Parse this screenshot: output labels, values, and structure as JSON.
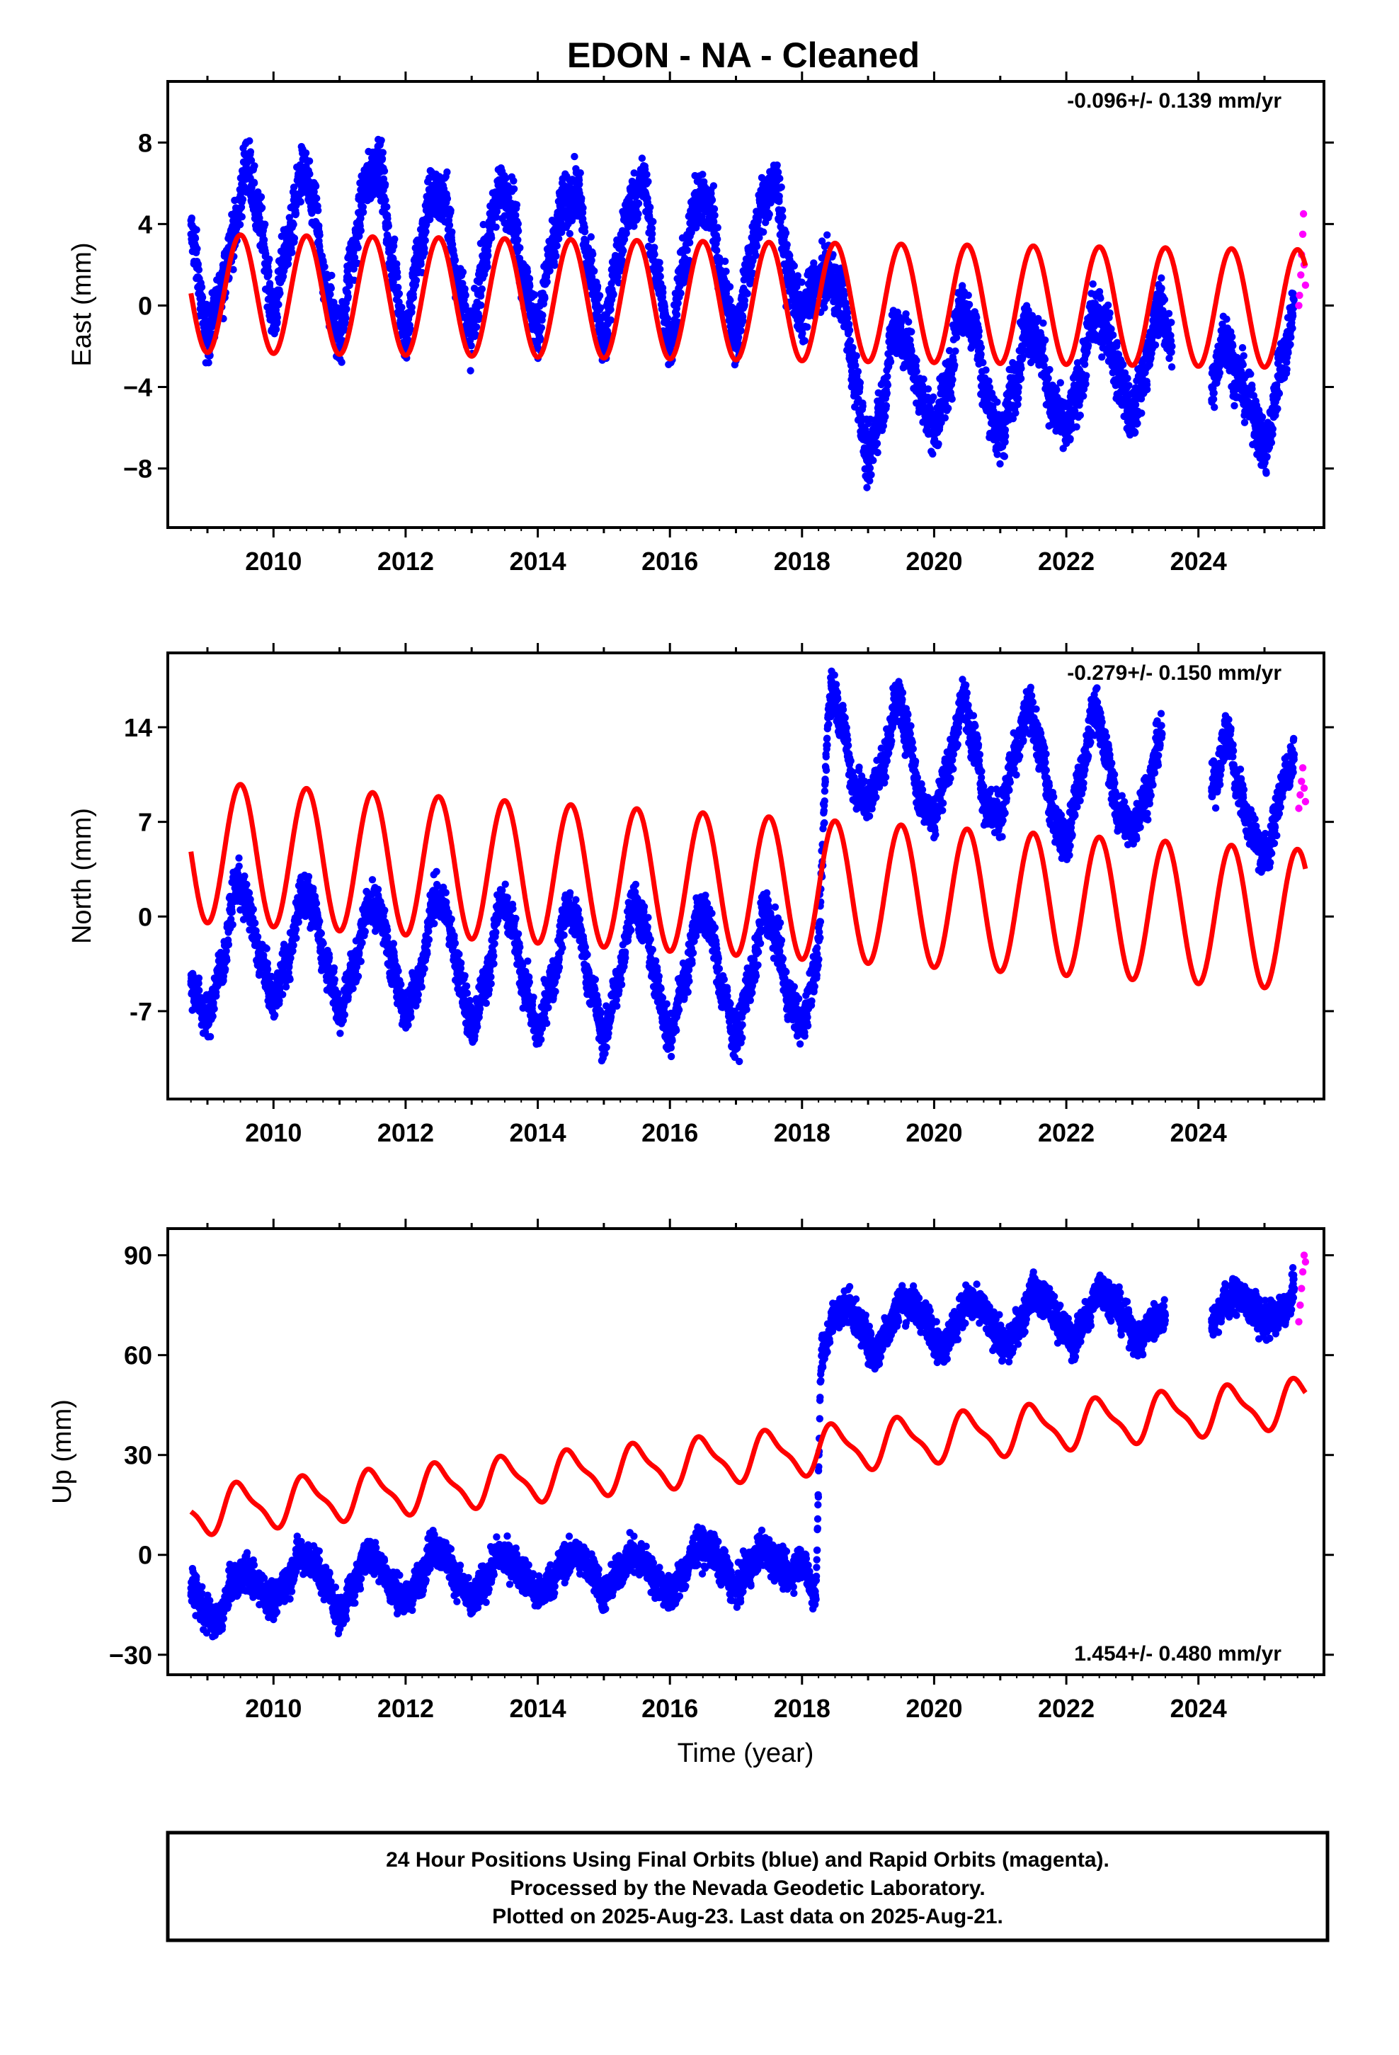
{
  "title": "EDON  - NA - Cleaned",
  "xlabel": "Time (year)",
  "colors": {
    "final": "#0000ff",
    "rapid": "#ff00ff",
    "model": "#ff0000"
  },
  "footer": [
    "24 Hour Positions Using Final Orbits (blue) and Rapid Orbits (magenta).",
    "Processed by the Nevada Geodetic Laboratory.",
    "Plotted on 2025-Aug-23. Last data on 2025-Aug-21."
  ],
  "chart_data": [
    {
      "type": "scatter",
      "component": "east",
      "ylabel": "East (mm)",
      "rate": "-0.096+/- 0.139 mm/yr",
      "rate_position": "top-right",
      "xlim": [
        2008.4,
        2025.9
      ],
      "ylim": [
        -10.9,
        11.0
      ],
      "xticks": [
        "2010",
        "2012",
        "2014",
        "2016",
        "2018",
        "2020",
        "2022",
        "2024"
      ],
      "yticks": [
        "8",
        "4",
        "0",
        "−4",
        "−8"
      ],
      "grid": false,
      "series": [
        {
          "role": "final-orbits",
          "color": "#0000ff",
          "x": [
            2008.75,
            2009.0,
            2009.15,
            2009.4,
            2009.6,
            2009.8,
            2010.0,
            2010.2,
            2010.45,
            2010.6,
            2010.8,
            2011.0,
            2011.2,
            2011.4,
            2011.6,
            2011.8,
            2012.0,
            2012.2,
            2012.4,
            2012.6,
            2012.8,
            2013.0,
            2013.2,
            2013.4,
            2013.6,
            2013.8,
            2014.0,
            2014.2,
            2014.4,
            2014.6,
            2014.8,
            2015.0,
            2015.2,
            2015.4,
            2015.6,
            2015.8,
            2016.0,
            2016.2,
            2016.4,
            2016.6,
            2016.8,
            2017.0,
            2017.2,
            2017.4,
            2017.6,
            2017.8,
            2018.0,
            2018.2,
            2018.4,
            2018.6,
            2018.8,
            2019.0,
            2019.2,
            2019.4,
            2019.6,
            2019.8,
            2020.0,
            2020.2,
            2020.4,
            2020.6,
            2020.8,
            2021.0,
            2021.2,
            2021.4,
            2021.6,
            2021.8,
            2022.0,
            2022.2,
            2022.4,
            2022.6,
            2022.8,
            2023.0,
            2023.2,
            2023.4,
            2023.6,
            2024.2,
            2024.4,
            2024.6,
            2024.8,
            2025.0,
            2025.3,
            2025.45
          ],
          "y": [
            3.5,
            -1.5,
            0.0,
            3.5,
            7.0,
            4.0,
            -0.5,
            3.0,
            6.5,
            5.0,
            0.5,
            -1.5,
            2.5,
            6.0,
            7.0,
            2.0,
            -1.5,
            2.5,
            5.5,
            5.0,
            1.0,
            -1.5,
            2.5,
            5.5,
            5.0,
            1.0,
            -1.0,
            2.5,
            5.0,
            5.5,
            1.5,
            -1.5,
            2.0,
            5.0,
            6.0,
            1.5,
            -2.0,
            2.0,
            5.0,
            5.0,
            1.0,
            -1.5,
            2.0,
            5.0,
            6.0,
            1.5,
            -0.5,
            1.0,
            1.5,
            0.5,
            -3.5,
            -7.5,
            -5.0,
            -1.0,
            -2.0,
            -4.5,
            -6.0,
            -4.0,
            0.0,
            -1.0,
            -4.5,
            -6.5,
            -4.0,
            -1.0,
            -2.0,
            -5.0,
            -6.0,
            -4.0,
            -0.5,
            -1.0,
            -3.5,
            -5.5,
            -3.0,
            0.0,
            -2.0,
            -4.0,
            -1.5,
            -3.5,
            -5.0,
            -7.0,
            -2.5,
            0.0
          ],
          "spread": 1.3
        },
        {
          "role": "rapid-orbits",
          "color": "#ff00ff",
          "x": [
            2025.52,
            2025.53,
            2025.55,
            2025.56,
            2025.58,
            2025.59,
            2025.6,
            2025.62
          ],
          "y": [
            0.0,
            0.5,
            1.5,
            2.5,
            3.5,
            4.5,
            2.0,
            1.0
          ]
        },
        {
          "role": "model",
          "color": "#ff0000",
          "amplitude": 2.9,
          "trend": -0.096,
          "offset_start": 0.6,
          "offset_after_2018_6": 0.0,
          "x_range": [
            2008.75,
            2025.62
          ]
        }
      ]
    },
    {
      "type": "scatter",
      "component": "north",
      "ylabel": "North (mm)",
      "rate": "-0.279+/- 0.150 mm/yr",
      "rate_position": "top-right",
      "xlim": [
        2008.4,
        2025.9
      ],
      "ylim": [
        -13.5,
        19.5
      ],
      "xticks": [
        "2010",
        "2012",
        "2014",
        "2016",
        "2018",
        "2020",
        "2022",
        "2024"
      ],
      "yticks": [
        "14",
        "7",
        "0",
        "-7"
      ],
      "grid": false,
      "series": [
        {
          "role": "final-orbits",
          "color": "#0000ff",
          "x": [
            2008.75,
            2009.0,
            2009.2,
            2009.45,
            2009.6,
            2009.8,
            2010.0,
            2010.2,
            2010.45,
            2010.6,
            2010.8,
            2011.0,
            2011.2,
            2011.45,
            2011.6,
            2011.8,
            2012.0,
            2012.2,
            2012.45,
            2012.6,
            2012.8,
            2013.0,
            2013.2,
            2013.45,
            2013.6,
            2013.8,
            2014.0,
            2014.2,
            2014.45,
            2014.6,
            2014.8,
            2015.0,
            2015.2,
            2015.45,
            2015.6,
            2015.8,
            2016.0,
            2016.2,
            2016.45,
            2016.6,
            2016.8,
            2017.0,
            2017.2,
            2017.45,
            2017.6,
            2017.8,
            2018.0,
            2018.2,
            2018.45,
            2018.6,
            2018.8,
            2019.0,
            2019.2,
            2019.45,
            2019.6,
            2019.8,
            2020.0,
            2020.2,
            2020.45,
            2020.6,
            2020.8,
            2021.0,
            2021.2,
            2021.45,
            2021.6,
            2021.8,
            2022.0,
            2022.2,
            2022.45,
            2022.6,
            2022.8,
            2023.0,
            2023.2,
            2023.45,
            2024.2,
            2024.45,
            2024.6,
            2024.8,
            2025.0,
            2025.35,
            2025.45
          ],
          "y": [
            -5.0,
            -7.5,
            -4.0,
            2.5,
            1.0,
            -3.0,
            -6.0,
            -3.5,
            2.0,
            0.5,
            -3.5,
            -7.0,
            -4.0,
            1.0,
            0.5,
            -3.5,
            -7.0,
            -4.5,
            1.5,
            0.5,
            -4.0,
            -8.0,
            -5.0,
            1.0,
            -0.5,
            -5.0,
            -8.5,
            -5.0,
            0.5,
            -0.5,
            -5.0,
            -9.0,
            -5.0,
            1.0,
            -0.5,
            -5.0,
            -9.0,
            -5.0,
            0.5,
            -0.5,
            -5.5,
            -9.0,
            -5.0,
            0.5,
            -1.5,
            -6.0,
            -8.0,
            -4.0,
            17.0,
            14.5,
            9.5,
            8.5,
            11.0,
            16.0,
            13.5,
            8.5,
            7.5,
            11.0,
            16.0,
            13.0,
            8.0,
            7.5,
            11.5,
            15.5,
            12.5,
            7.5,
            5.5,
            10.0,
            15.5,
            12.0,
            7.5,
            6.5,
            9.0,
            13.5,
            9.5,
            13.5,
            9.5,
            6.5,
            4.5,
            10.5,
            12.0
          ],
          "spread": 1.5
        },
        {
          "role": "rapid-orbits",
          "color": "#ff00ff",
          "x": [
            2025.52,
            2025.54,
            2025.56,
            2025.58,
            2025.6,
            2025.62
          ],
          "y": [
            8.0,
            9.0,
            10.0,
            11.0,
            9.5,
            8.5
          ]
        },
        {
          "role": "model",
          "color": "#ff0000",
          "amplitude": 5.2,
          "trend": -0.279,
          "offset_start": 4.2,
          "offset_after_2018_6": 4.2,
          "x_range": [
            2008.75,
            2025.62
          ]
        }
      ]
    },
    {
      "type": "scatter",
      "component": "up",
      "ylabel": "Up (mm)",
      "rate": "1.454+/- 0.480 mm/yr",
      "rate_position": "bottom-right",
      "xlim": [
        2008.4,
        2025.9
      ],
      "ylim": [
        -36.0,
        98.0
      ],
      "xticks": [
        "2010",
        "2012",
        "2014",
        "2016",
        "2018",
        "2020",
        "2022",
        "2024"
      ],
      "yticks": [
        "90",
        "60",
        "30",
        "0",
        "−30"
      ],
      "grid": false,
      "series": [
        {
          "role": "final-orbits",
          "color": "#0000ff",
          "x": [
            2008.75,
            2009.0,
            2009.15,
            2009.4,
            2009.6,
            2009.8,
            2010.0,
            2010.2,
            2010.4,
            2010.6,
            2010.8,
            2011.0,
            2011.2,
            2011.4,
            2011.6,
            2011.8,
            2012.0,
            2012.2,
            2012.4,
            2012.6,
            2012.8,
            2013.0,
            2013.2,
            2013.4,
            2013.6,
            2013.8,
            2014.0,
            2014.2,
            2014.4,
            2014.6,
            2014.8,
            2015.0,
            2015.2,
            2015.4,
            2015.6,
            2015.8,
            2016.0,
            2016.2,
            2016.4,
            2016.6,
            2016.8,
            2017.0,
            2017.2,
            2017.4,
            2017.6,
            2017.8,
            2018.0,
            2018.2,
            2018.3,
            2018.5,
            2018.7,
            2018.9,
            2019.1,
            2019.3,
            2019.5,
            2019.7,
            2019.9,
            2020.1,
            2020.3,
            2020.5,
            2020.7,
            2020.9,
            2021.1,
            2021.3,
            2021.5,
            2021.7,
            2021.9,
            2022.1,
            2022.3,
            2022.5,
            2022.7,
            2022.9,
            2023.1,
            2023.3,
            2023.5,
            2024.2,
            2024.4,
            2024.6,
            2024.8,
            2025.0,
            2025.35,
            2025.45
          ],
          "y": [
            -10.0,
            -18.0,
            -20.0,
            -8.0,
            -5.0,
            -10.0,
            -14.0,
            -8.0,
            0.0,
            -2.0,
            -8.0,
            -18.0,
            -10.0,
            0.0,
            -2.0,
            -10.0,
            -14.0,
            -8.0,
            2.0,
            0.0,
            -8.0,
            -14.0,
            -8.0,
            0.0,
            -2.0,
            -6.0,
            -12.0,
            -8.0,
            -2.0,
            0.0,
            -4.0,
            -12.0,
            -6.0,
            0.0,
            -2.0,
            -8.0,
            -12.0,
            -6.0,
            2.0,
            2.0,
            -4.0,
            -10.0,
            -4.0,
            2.0,
            -2.0,
            -6.0,
            -2.0,
            -12.0,
            60.0,
            72.0,
            75.0,
            68.0,
            60.0,
            68.0,
            76.0,
            75.0,
            70.0,
            62.0,
            68.0,
            76.0,
            74.0,
            68.0,
            62.0,
            70.0,
            79.0,
            76.0,
            70.0,
            64.0,
            71.0,
            80.0,
            77.0,
            70.0,
            64.0,
            70.0,
            72.0,
            70.0,
            76.0,
            78.0,
            74.0,
            70.0,
            74.0,
            80.0
          ],
          "spread": 5.0
        },
        {
          "role": "rapid-orbits",
          "color": "#ff00ff",
          "x": [
            2025.52,
            2025.54,
            2025.56,
            2025.58,
            2025.6,
            2025.62
          ],
          "y": [
            70.0,
            75.0,
            80.0,
            85.0,
            90.0,
            88.0
          ]
        },
        {
          "role": "model",
          "color": "#ff0000",
          "amplitude": 5.5,
          "trend": 1.454,
          "offset_start": 13.0,
          "offset_after_2018_6": 13.0,
          "x_range": [
            2008.75,
            2025.62
          ]
        }
      ]
    }
  ]
}
